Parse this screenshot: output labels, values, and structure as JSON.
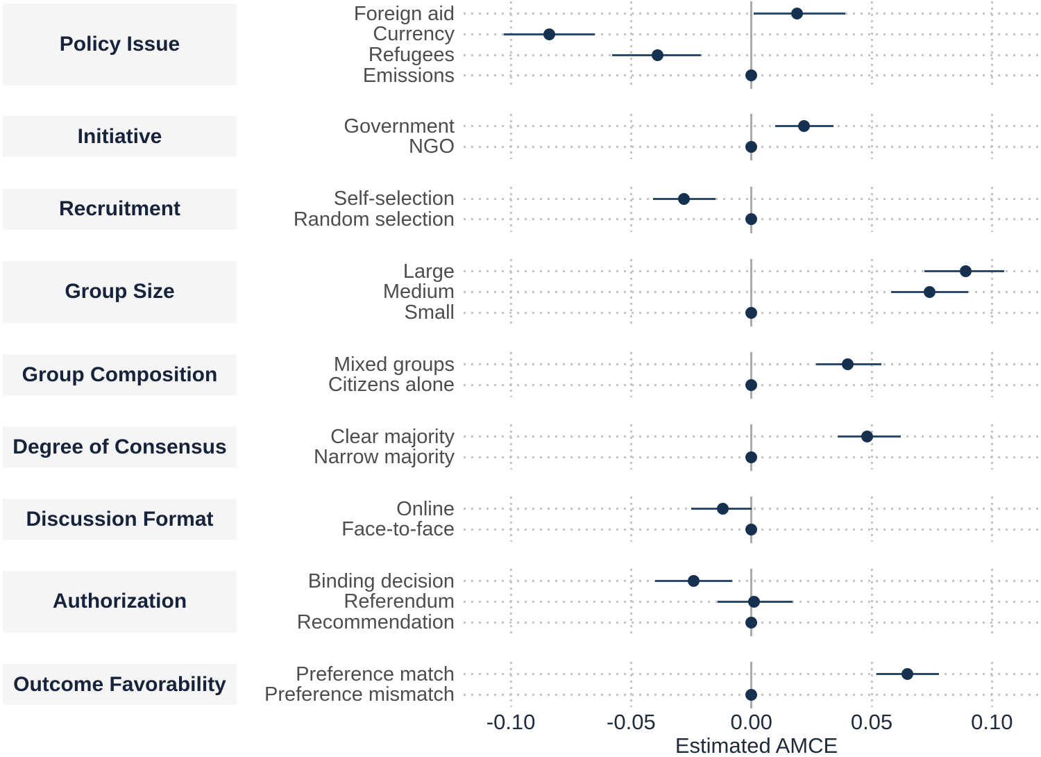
{
  "chart_data": {
    "type": "scatter",
    "subtype": "coefficient-dot-whisker-plot",
    "title": "",
    "xlabel": "Estimated AMCE",
    "ylabel": "",
    "xlim": [
      -0.12,
      0.12
    ],
    "x_ticks": [
      -0.1,
      -0.05,
      0.0,
      0.05,
      0.1
    ],
    "x_tick_labels": [
      "-0.10",
      "-0.05",
      "0.00",
      "0.05",
      "0.10"
    ],
    "grid": "dotted vertical gridlines at ticks; dotted horizontal guide per row; solid vertical line at 0",
    "legend_position": "none",
    "facets": [
      {
        "category": "Policy Issue",
        "levels": [
          {
            "label": "Foreign aid",
            "estimate": 0.019,
            "ci_low": 0.001,
            "ci_high": 0.039,
            "reference": false
          },
          {
            "label": "Currency",
            "estimate": -0.084,
            "ci_low": -0.103,
            "ci_high": -0.065,
            "reference": false
          },
          {
            "label": "Refugees",
            "estimate": -0.039,
            "ci_low": -0.058,
            "ci_high": -0.021,
            "reference": false
          },
          {
            "label": "Emissions",
            "estimate": 0.0,
            "ci_low": 0.0,
            "ci_high": 0.0,
            "reference": true
          }
        ]
      },
      {
        "category": "Initiative",
        "levels": [
          {
            "label": "Government",
            "estimate": 0.022,
            "ci_low": 0.01,
            "ci_high": 0.034,
            "reference": false
          },
          {
            "label": "NGO",
            "estimate": 0.0,
            "ci_low": 0.0,
            "ci_high": 0.0,
            "reference": true
          }
        ]
      },
      {
        "category": "Recruitment",
        "levels": [
          {
            "label": "Self-selection",
            "estimate": -0.028,
            "ci_low": -0.041,
            "ci_high": -0.015,
            "reference": false
          },
          {
            "label": "Random selection",
            "estimate": 0.0,
            "ci_low": 0.0,
            "ci_high": 0.0,
            "reference": true
          }
        ]
      },
      {
        "category": "Group Size",
        "levels": [
          {
            "label": "Large",
            "estimate": 0.089,
            "ci_low": 0.072,
            "ci_high": 0.105,
            "reference": false
          },
          {
            "label": "Medium",
            "estimate": 0.074,
            "ci_low": 0.058,
            "ci_high": 0.09,
            "reference": false
          },
          {
            "label": "Small",
            "estimate": 0.0,
            "ci_low": 0.0,
            "ci_high": 0.0,
            "reference": true
          }
        ]
      },
      {
        "category": "Group Composition",
        "levels": [
          {
            "label": "Mixed groups",
            "estimate": 0.04,
            "ci_low": 0.027,
            "ci_high": 0.054,
            "reference": false
          },
          {
            "label": "Citizens alone",
            "estimate": 0.0,
            "ci_low": 0.0,
            "ci_high": 0.0,
            "reference": true
          }
        ]
      },
      {
        "category": "Degree of Consensus",
        "levels": [
          {
            "label": "Clear majority",
            "estimate": 0.048,
            "ci_low": 0.036,
            "ci_high": 0.062,
            "reference": false
          },
          {
            "label": "Narrow majority",
            "estimate": 0.0,
            "ci_low": 0.0,
            "ci_high": 0.0,
            "reference": true
          }
        ]
      },
      {
        "category": "Discussion Format",
        "levels": [
          {
            "label": "Online",
            "estimate": -0.012,
            "ci_low": -0.025,
            "ci_high": 0.0,
            "reference": false
          },
          {
            "label": "Face-to-face",
            "estimate": 0.0,
            "ci_low": 0.0,
            "ci_high": 0.0,
            "reference": true
          }
        ]
      },
      {
        "category": "Authorization",
        "levels": [
          {
            "label": "Binding decision",
            "estimate": -0.024,
            "ci_low": -0.04,
            "ci_high": -0.008,
            "reference": false
          },
          {
            "label": "Referendum",
            "estimate": 0.001,
            "ci_low": -0.014,
            "ci_high": 0.017,
            "reference": false
          },
          {
            "label": "Recommendation",
            "estimate": 0.0,
            "ci_low": 0.0,
            "ci_high": 0.0,
            "reference": true
          }
        ]
      },
      {
        "category": "Outcome Favorability",
        "levels": [
          {
            "label": "Preference match",
            "estimate": 0.065,
            "ci_low": 0.052,
            "ci_high": 0.078,
            "reference": false
          },
          {
            "label": "Preference mismatch",
            "estimate": 0.0,
            "ci_low": 0.0,
            "ci_high": 0.0,
            "reference": true
          }
        ]
      }
    ],
    "colors": {
      "point": "#16304f",
      "ci": "#2a4a6b",
      "zero_line": "#a9a9a9",
      "grid": "#c4c4c4",
      "strip_bg": "#f5f5f5",
      "category_text": "#16233a",
      "level_text": "#4d4d4d",
      "axis_text": "#1f2a3a"
    }
  }
}
